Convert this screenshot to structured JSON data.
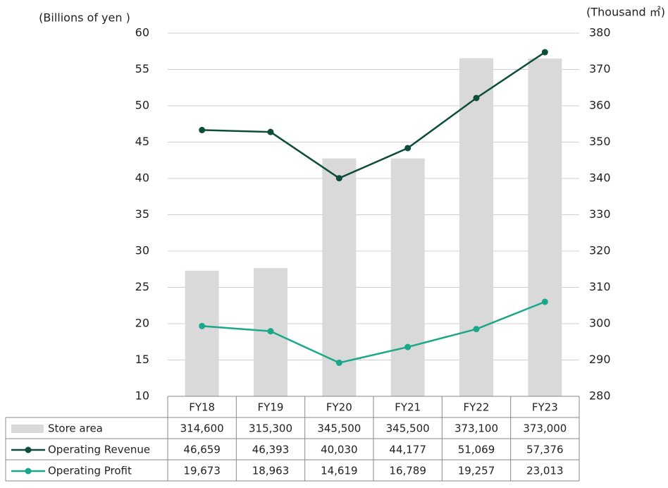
{
  "chart_data": {
    "type": "combo",
    "y_label": "(Billions of yen )",
    "y2_label": "(Thousand ㎡)",
    "categories": [
      "FY18",
      "FY19",
      "FY20",
      "FY21",
      "FY22",
      "FY23"
    ],
    "ylim": [
      10,
      60
    ],
    "yticks": [
      10,
      15,
      20,
      25,
      30,
      35,
      40,
      45,
      50,
      55,
      60
    ],
    "y2lim": [
      280,
      380
    ],
    "y2ticks": [
      280,
      290,
      300,
      310,
      320,
      330,
      340,
      350,
      360,
      370,
      380
    ],
    "grid": true,
    "series": [
      {
        "name": "Store area",
        "type": "bar",
        "axis": "y2",
        "color": "#d9d9d9",
        "values": [
          314.6,
          315.3,
          345.5,
          345.5,
          373.1,
          373.0
        ],
        "value_labels": [
          "314,600",
          "315,300",
          "345,500",
          "345,500",
          "373,100",
          "373,000"
        ]
      },
      {
        "name": "Operating Revenue",
        "type": "line",
        "color": "#0e4d3b",
        "values": [
          46.659,
          46.393,
          40.03,
          44.177,
          51.069,
          57.376
        ],
        "value_labels": [
          "46,659",
          "46,393",
          "40,030",
          "44,177",
          "51,069",
          "57,376"
        ]
      },
      {
        "name": "Operating Profit",
        "type": "line",
        "color": "#1aa889",
        "values": [
          19.673,
          18.963,
          14.619,
          16.789,
          19.257,
          23.013
        ],
        "value_labels": [
          "19,673",
          "18,963",
          "14,619",
          "16,789",
          "19,257",
          "23,013"
        ]
      }
    ]
  }
}
